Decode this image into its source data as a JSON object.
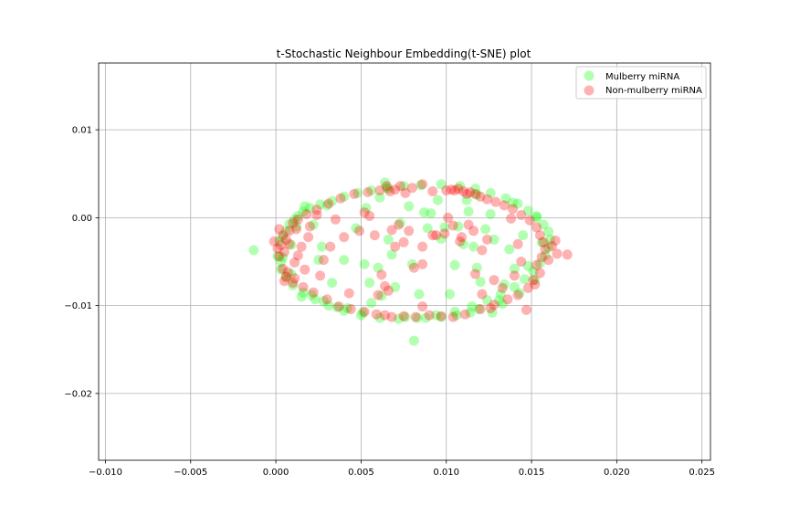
{
  "chart_data": {
    "type": "scatter",
    "title": "t-Stochastic Neighbour Embedding(t-SNE) plot",
    "xlabel": "",
    "ylabel": "",
    "xlim": [
      -0.0104,
      0.0255
    ],
    "ylim": [
      -0.0276,
      0.0176
    ],
    "x_ticks": [
      -0.01,
      -0.005,
      0.0,
      0.005,
      0.01,
      0.015,
      0.02,
      0.025
    ],
    "x_tick_labels": [
      "−0.010",
      "−0.005",
      "0.000",
      "0.005",
      "0.010",
      "0.015",
      "0.020",
      "0.025"
    ],
    "y_ticks": [
      0.01,
      0.0,
      -0.01,
      -0.02
    ],
    "y_tick_labels": [
      "0.01",
      "0.00",
      "−0.01",
      "−0.02"
    ],
    "grid": true,
    "legend_position": "top-right",
    "series": [
      {
        "name": "Mulberry miRNA",
        "color": "#00ff00",
        "points": [
          [
            -0.0013,
            -0.0037
          ],
          [
            0.0001,
            -0.0044
          ],
          [
            0.0003,
            -0.005
          ],
          [
            0.0002,
            -0.0027
          ],
          [
            0.0004,
            -0.0022
          ],
          [
            0.0006,
            -0.0015
          ],
          [
            0.0008,
            -0.0007
          ],
          [
            0.0011,
            -0.0002
          ],
          [
            0.0013,
            0.0002
          ],
          [
            0.0016,
            0.0007
          ],
          [
            0.002,
            0.0011
          ],
          [
            0.0026,
            0.0015
          ],
          [
            0.0033,
            0.0019
          ],
          [
            0.004,
            0.0024
          ],
          [
            0.0048,
            0.0028
          ],
          [
            0.0056,
            0.0031
          ],
          [
            0.0065,
            0.0034
          ],
          [
            0.0075,
            0.0036
          ],
          [
            0.0085,
            0.0037
          ],
          [
            0.0097,
            0.0038
          ],
          [
            0.0108,
            0.0036
          ],
          [
            0.0117,
            0.0033
          ],
          [
            0.0126,
            0.0028
          ],
          [
            0.0135,
            0.0022
          ],
          [
            0.0142,
            0.0016
          ],
          [
            0.0148,
            0.0008
          ],
          [
            0.0153,
            0.0
          ],
          [
            0.0157,
            -0.0008
          ],
          [
            0.016,
            -0.0016
          ],
          [
            0.0161,
            -0.0025
          ],
          [
            0.016,
            -0.0034
          ],
          [
            0.0158,
            -0.0043
          ],
          [
            0.0155,
            -0.0052
          ],
          [
            0.0151,
            -0.0061
          ],
          [
            0.0146,
            -0.007
          ],
          [
            0.014,
            -0.0079
          ],
          [
            0.0132,
            -0.0087
          ],
          [
            0.0124,
            -0.0094
          ],
          [
            0.0115,
            -0.0101
          ],
          [
            0.0105,
            -0.0107
          ],
          [
            0.0094,
            -0.0111
          ],
          [
            0.0083,
            -0.0114
          ],
          [
            0.0072,
            -0.0115
          ],
          [
            0.0061,
            -0.0114
          ],
          [
            0.005,
            -0.0111
          ],
          [
            0.004,
            -0.0106
          ],
          [
            0.0031,
            -0.01
          ],
          [
            0.0023,
            -0.0093
          ],
          [
            0.0016,
            -0.0085
          ],
          [
            0.001,
            -0.0077
          ],
          [
            0.0006,
            -0.0068
          ],
          [
            0.0003,
            -0.0059
          ],
          [
            0.0017,
            0.0013
          ],
          [
            0.0022,
            -0.0008
          ],
          [
            0.0027,
            -0.0033
          ],
          [
            0.0025,
            -0.0048
          ],
          [
            0.0033,
            -0.0074
          ],
          [
            0.004,
            -0.0048
          ],
          [
            0.0052,
            -0.0053
          ],
          [
            0.0055,
            -0.0074
          ],
          [
            0.0056,
            -0.0097
          ],
          [
            0.006,
            -0.0057
          ],
          [
            0.0062,
            -0.0089
          ],
          [
            0.0066,
            -0.0025
          ],
          [
            0.0068,
            -0.0042
          ],
          [
            0.0073,
            -0.0006
          ],
          [
            0.007,
            -0.0079
          ],
          [
            0.0078,
            0.0013
          ],
          [
            0.008,
            -0.0053
          ],
          [
            0.0084,
            -0.0087
          ],
          [
            0.0087,
            0.0006
          ],
          [
            0.0089,
            -0.0012
          ],
          [
            0.0095,
            0.002
          ],
          [
            0.0097,
            -0.0024
          ],
          [
            0.0102,
            -0.0087
          ],
          [
            0.0105,
            -0.0054
          ],
          [
            0.0107,
            -0.001
          ],
          [
            0.011,
            -0.003
          ],
          [
            0.0113,
            0.0007
          ],
          [
            0.0116,
            -0.0033
          ],
          [
            0.0118,
            -0.0057
          ],
          [
            0.012,
            -0.0073
          ],
          [
            0.0123,
            -0.0013
          ],
          [
            0.0126,
            0.0004
          ],
          [
            0.0128,
            -0.0025
          ],
          [
            0.0131,
            -0.0094
          ],
          [
            0.0134,
            -0.0076
          ],
          [
            0.0137,
            -0.0036
          ],
          [
            0.014,
            -0.0058
          ],
          [
            0.0145,
            -0.002
          ],
          [
            0.0081,
            -0.014
          ],
          [
            0.0064,
            0.004
          ],
          [
            0.0053,
            0.0011
          ],
          [
            0.0047,
            -0.0012
          ],
          [
            0.0061,
            0.0023
          ],
          [
            0.0091,
            0.0005
          ],
          [
            0.0112,
            0.002
          ],
          [
            0.0099,
            -0.0011
          ],
          [
            0.0119,
            -0.0104
          ],
          [
            0.0127,
            -0.0108
          ],
          [
            0.0015,
            -0.009
          ],
          [
            0.0009,
            -0.0031
          ],
          [
            0.0042,
            -0.0103
          ],
          [
            0.0076,
            -0.0113
          ],
          [
            0.0097,
            -0.0113
          ],
          [
            0.0114,
            -0.0108
          ],
          [
            0.0051,
            -0.0108
          ],
          [
            0.0036,
            -0.0102
          ],
          [
            0.0148,
            -0.0055
          ],
          [
            0.0156,
            -0.0028
          ],
          [
            0.0152,
            -0.0071
          ],
          [
            0.0153,
            0.0002
          ],
          [
            0.0139,
            0.0017
          ],
          [
            0.0118,
            0.0026
          ],
          [
            0.0066,
            0.0033
          ],
          [
            0.003,
            0.0014
          ],
          [
            0.0012,
            -0.001
          ],
          [
            0.0004,
            -0.0045
          ],
          [
            0.0009,
            -0.0064
          ],
          [
            0.0021,
            -0.0088
          ],
          [
            0.0028,
            -0.0095
          ],
          [
            0.0088,
            -0.0114
          ],
          [
            0.0106,
            -0.0111
          ],
          [
            0.0133,
            -0.0098
          ],
          [
            0.0143,
            -0.0086
          ]
        ]
      },
      {
        "name": "Non-mulberry miRNA",
        "color": "#ff0000",
        "points": [
          [
            -0.0001,
            -0.0027
          ],
          [
            0.0001,
            -0.0035
          ],
          [
            0.0003,
            -0.0031
          ],
          [
            0.0004,
            -0.002
          ],
          [
            0.0005,
            -0.0039
          ],
          [
            0.0006,
            -0.0025
          ],
          [
            0.0002,
            -0.0044
          ],
          [
            0.0008,
            -0.0015
          ],
          [
            0.001,
            -0.0006
          ],
          [
            0.0013,
            -0.0002
          ],
          [
            0.0018,
            0.0004
          ],
          [
            0.0024,
            0.0009
          ],
          [
            0.0031,
            0.0016
          ],
          [
            0.0038,
            0.0022
          ],
          [
            0.0046,
            0.0027
          ],
          [
            0.0054,
            0.0029
          ],
          [
            0.0061,
            0.0031
          ],
          [
            0.0065,
            0.0036
          ],
          [
            0.0067,
            0.003
          ],
          [
            0.007,
            0.0032
          ],
          [
            0.0073,
            0.0036
          ],
          [
            0.0076,
            0.0028
          ],
          [
            0.008,
            0.0034
          ],
          [
            0.0086,
            0.0038
          ],
          [
            0.0092,
            0.003
          ],
          [
            0.01,
            0.0031
          ],
          [
            0.0103,
            0.0032
          ],
          [
            0.0105,
            0.0031
          ],
          [
            0.0107,
            0.0033
          ],
          [
            0.011,
            0.003
          ],
          [
            0.0112,
            0.0027
          ],
          [
            0.0114,
            0.0029
          ],
          [
            0.0117,
            0.0027
          ],
          [
            0.012,
            0.0024
          ],
          [
            0.0124,
            0.0021
          ],
          [
            0.0129,
            0.0018
          ],
          [
            0.0134,
            0.0014
          ],
          [
            0.0139,
            0.001
          ],
          [
            0.0144,
            0.0003
          ],
          [
            0.0149,
            -0.0003
          ],
          [
            0.0153,
            -0.0011
          ],
          [
            0.0155,
            -0.002
          ],
          [
            0.0157,
            -0.0028
          ],
          [
            0.0158,
            -0.0036
          ],
          [
            0.0156,
            -0.0045
          ],
          [
            0.0153,
            -0.0054
          ],
          [
            0.0155,
            -0.0063
          ],
          [
            0.0151,
            -0.0071
          ],
          [
            0.0148,
            -0.008
          ],
          [
            0.0142,
            -0.0088
          ],
          [
            0.0136,
            -0.0093
          ],
          [
            0.0128,
            -0.0099
          ],
          [
            0.012,
            -0.0104
          ],
          [
            0.0111,
            -0.011
          ],
          [
            0.0104,
            -0.0113
          ],
          [
            0.0097,
            -0.0112
          ],
          [
            0.009,
            -0.0111
          ],
          [
            0.0082,
            -0.0113
          ],
          [
            0.0075,
            -0.0112
          ],
          [
            0.0068,
            -0.0113
          ],
          [
            0.0064,
            -0.0111
          ],
          [
            0.0059,
            -0.011
          ],
          [
            0.0052,
            -0.0107
          ],
          [
            0.0044,
            -0.0104
          ],
          [
            0.0037,
            -0.0101
          ],
          [
            0.003,
            -0.0093
          ],
          [
            0.0022,
            -0.0085
          ],
          [
            0.0016,
            -0.0079
          ],
          [
            0.001,
            -0.0074
          ],
          [
            0.0006,
            -0.0067
          ],
          [
            0.0004,
            -0.0058
          ],
          [
            0.0007,
            -0.0062
          ],
          [
            0.0011,
            -0.0051
          ],
          [
            0.0013,
            -0.0043
          ],
          [
            0.0015,
            -0.0033
          ],
          [
            0.0019,
            -0.0022
          ],
          [
            0.0012,
            -0.0013
          ],
          [
            0.0162,
            -0.0032
          ],
          [
            0.0164,
            -0.0026
          ],
          [
            0.0165,
            -0.0041
          ],
          [
            0.0171,
            -0.0042
          ],
          [
            0.016,
            -0.0048
          ],
          [
            0.0152,
            -0.0076
          ],
          [
            0.0147,
            -0.0105
          ],
          [
            0.0128,
            -0.0071
          ],
          [
            0.0121,
            -0.0087
          ],
          [
            0.0117,
            -0.0064
          ],
          [
            0.0121,
            -0.0037
          ],
          [
            0.0116,
            -0.0015
          ],
          [
            0.0113,
            -0.0008
          ],
          [
            0.0109,
            -0.0022
          ],
          [
            0.0104,
            -0.0009
          ],
          [
            0.0099,
            -0.0018
          ],
          [
            0.0092,
            -0.002
          ],
          [
            0.0086,
            -0.0033
          ],
          [
            0.0086,
            -0.0053
          ],
          [
            0.0081,
            -0.0057
          ],
          [
            0.0078,
            -0.0015
          ],
          [
            0.0075,
            -0.0028
          ],
          [
            0.0072,
            -0.0008
          ],
          [
            0.007,
            -0.0033
          ],
          [
            0.0068,
            -0.0014
          ],
          [
            0.0066,
            -0.0083
          ],
          [
            0.0064,
            -0.0078
          ],
          [
            0.0062,
            -0.0065
          ],
          [
            0.006,
            -0.0088
          ],
          [
            0.0058,
            -0.002
          ],
          [
            0.0055,
            0.0002
          ],
          [
            0.0052,
            0.0006
          ],
          [
            0.0049,
            -0.0015
          ],
          [
            0.0043,
            -0.0086
          ],
          [
            0.004,
            -0.0022
          ],
          [
            0.0035,
            -0.0002
          ],
          [
            0.0032,
            -0.0033
          ],
          [
            0.0028,
            -0.0048
          ],
          [
            0.0026,
            -0.0066
          ],
          [
            0.0024,
            0.0003
          ],
          [
            0.002,
            -0.001
          ],
          [
            0.0017,
            -0.0059
          ],
          [
            0.0086,
            -0.0101
          ],
          [
            0.0094,
            -0.002
          ],
          [
            0.0101,
            0.0
          ],
          [
            0.0108,
            -0.0027
          ],
          [
            0.0124,
            -0.0025
          ],
          [
            0.0138,
            -0.0001
          ],
          [
            0.0142,
            -0.003
          ],
          [
            0.0144,
            -0.005
          ],
          [
            0.014,
            -0.0066
          ],
          [
            0.0133,
            -0.008
          ],
          [
            0.0126,
            -0.0103
          ],
          [
            0.0002,
            -0.0013
          ],
          [
            0.0008,
            -0.003
          ],
          [
            0.0005,
            -0.0072
          ],
          [
            0.0011,
            -0.0069
          ]
        ]
      }
    ]
  }
}
